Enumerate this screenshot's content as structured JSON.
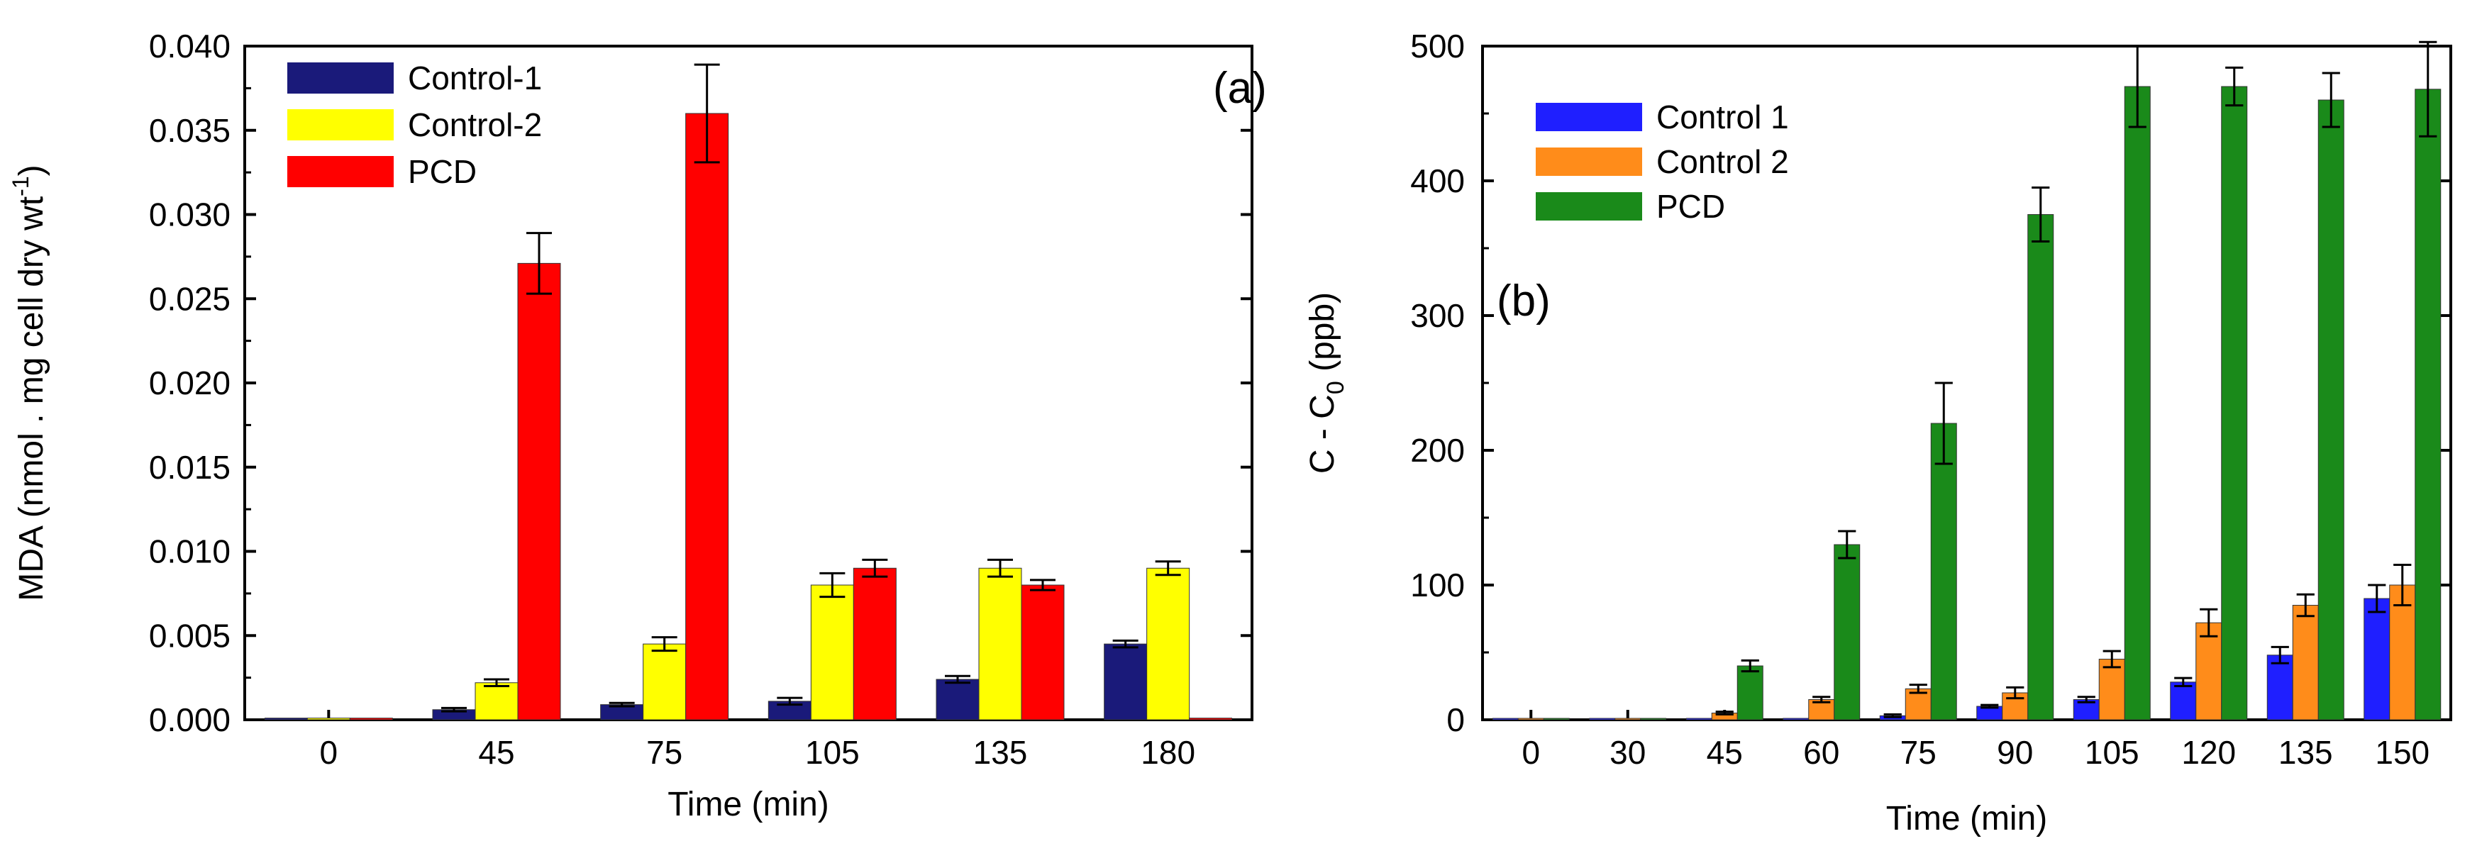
{
  "chart_data": [
    {
      "id": "a",
      "type": "bar",
      "panel_label": "(a)",
      "title": "",
      "xlabel": "Time (min)",
      "ylabel_main": "MDA (nmol . mg cell dry wt",
      "ylabel_sup": "-1",
      "ylabel_close": ")",
      "ylim": [
        0,
        0.04
      ],
      "yticks": [
        "0.000",
        "0.005",
        "0.010",
        "0.015",
        "0.020",
        "0.025",
        "0.030",
        "0.035",
        "0.040"
      ],
      "categories": [
        "0",
        "45",
        "75",
        "105",
        "135",
        "180"
      ],
      "legend_position": "top-left",
      "series": [
        {
          "name": "Control-1",
          "color": "#1a1a7a",
          "values": [
            0.0001,
            0.0006,
            0.0009,
            0.0011,
            0.0024,
            0.0045
          ],
          "errors": [
            0,
            0.0001,
            0.0001,
            0.0002,
            0.0002,
            0.0002
          ]
        },
        {
          "name": "Control-2",
          "color": "#ffff00",
          "values": [
            0.0001,
            0.0022,
            0.0045,
            0.008,
            0.009,
            0.009
          ],
          "errors": [
            0,
            0.0002,
            0.0004,
            0.0007,
            0.0005,
            0.0004
          ]
        },
        {
          "name": "PCD",
          "color": "#ff0000",
          "values": [
            0.0001,
            0.0271,
            0.036,
            0.009,
            0.008,
            0.0001
          ],
          "errors": [
            0,
            0.0018,
            0.0029,
            0.0005,
            0.0003,
            0
          ]
        }
      ]
    },
    {
      "id": "b",
      "type": "bar",
      "panel_label": "(b)",
      "title": "",
      "xlabel": "Time (min)",
      "ylabel_main": "C - C",
      "ylabel_sub": "0",
      "ylabel_close": " (ppb)",
      "ylim": [
        0,
        500
      ],
      "yticks": [
        "0",
        "100",
        "200",
        "300",
        "400",
        "500"
      ],
      "categories": [
        "0",
        "30",
        "45",
        "60",
        "75",
        "90",
        "105",
        "120",
        "135",
        "150"
      ],
      "legend_position": "top-left",
      "series": [
        {
          "name": "Control 1",
          "color": "#1f1fff",
          "values": [
            0,
            0,
            0,
            1,
            3,
            10,
            15,
            28,
            48,
            90
          ],
          "errors": [
            0,
            0,
            0,
            0,
            1,
            1,
            2,
            3,
            6,
            10
          ]
        },
        {
          "name": "Control 2",
          "color": "#ff8c1a",
          "values": [
            0,
            0,
            5,
            15,
            23,
            20,
            45,
            72,
            85,
            100
          ],
          "errors": [
            0,
            0,
            1,
            2,
            3,
            4,
            6,
            10,
            8,
            15
          ]
        },
        {
          "name": "PCD",
          "color": "#1a8a1a",
          "values": [
            0,
            0,
            40,
            130,
            220,
            375,
            470,
            470,
            460,
            468
          ],
          "errors": [
            0,
            0,
            4,
            10,
            30,
            20,
            30,
            14,
            20,
            35
          ]
        }
      ]
    }
  ]
}
